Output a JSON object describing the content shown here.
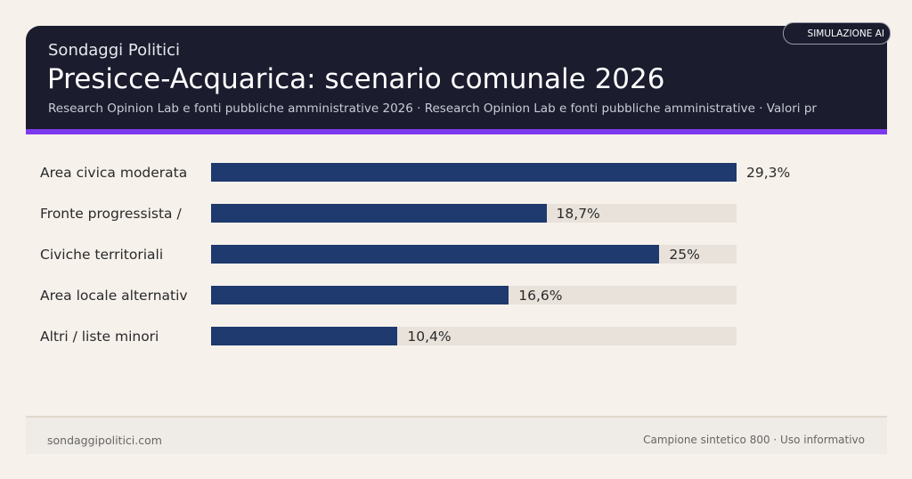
{
  "header": {
    "brand": "Sondaggi Politici",
    "title": "Presicce-Acquarica: scenario comunale 2026",
    "subtitle": "Research Opinion Lab e fonti pubbliche amministrative 2026 · Research Opinion Lab e fonti pubbliche amministrative · Valori pr",
    "badge": "SIMULAZIONE AI"
  },
  "colors": {
    "header_bg": "#1b1c2e",
    "accent": "#7c3aed",
    "bar": "#1e3a6e",
    "track": "#e8e2da"
  },
  "chart_data": {
    "type": "bar",
    "orientation": "horizontal",
    "categories": [
      "Area civica moderata",
      "Fronte progressista /",
      "Civiche territoriali",
      "Area locale alternativ",
      "Altri / liste minori"
    ],
    "values": [
      29.3,
      18.7,
      25,
      16.6,
      10.4
    ],
    "value_labels": [
      "29,3%",
      "18,7%",
      "25%",
      "16,6%",
      "10,4%"
    ],
    "xlim": [
      0,
      29.3
    ],
    "grid": false
  },
  "footer": {
    "left": "sondaggipolitici.com",
    "right": "Campione sintetico 800 · Uso informativo"
  }
}
